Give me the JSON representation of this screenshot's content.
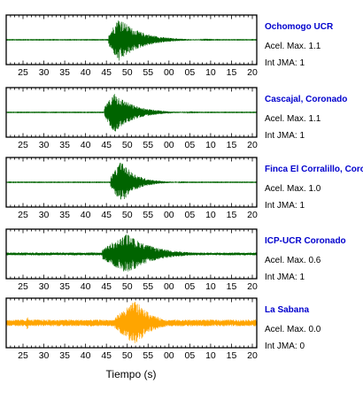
{
  "chart_data": {
    "type": "line",
    "xlabel": "Tiempo (s)",
    "tick_labels": [
      "25",
      "30",
      "35",
      "40",
      "45",
      "50",
      "55",
      "00",
      "05",
      "10",
      "15",
      "20"
    ],
    "xlim": [
      21,
      81
    ],
    "stations": [
      {
        "name": "Ochomogo UCR",
        "accel_label": "Acel. Max. 1.1",
        "jma_label": "Int JMA: 1",
        "accel_max": 1.1,
        "jma": 1,
        "color": "#006400",
        "name_color": "#0000cd",
        "onset_s": 45.5,
        "peak_s": 48,
        "peak_amplitude": 0.95,
        "noise_amplitude": 0.01,
        "decay_s": 5
      },
      {
        "name": "Cascajal, Coronado",
        "accel_label": "Acel. Max. 1.1",
        "jma_label": "Int JMA: 1",
        "accel_max": 1.1,
        "jma": 1,
        "color": "#006400",
        "name_color": "#0000cd",
        "onset_s": 44.5,
        "peak_s": 47,
        "peak_amplitude": 0.85,
        "noise_amplitude": 0.01,
        "decay_s": 4.5
      },
      {
        "name": "Finca El Corralillo, Coronado",
        "accel_label": "Acel. Max. 1.0",
        "jma_label": "Int JMA: 1",
        "accel_max": 1.0,
        "jma": 1,
        "color": "#006400",
        "name_color": "#0000cd",
        "onset_s": 46,
        "peak_s": 48.5,
        "peak_amplitude": 0.9,
        "noise_amplitude": 0.01,
        "decay_s": 3.5
      },
      {
        "name": "ICP-UCR Coronado",
        "accel_label": "Acel. Max. 0.6",
        "jma_label": "Int JMA: 1",
        "accel_max": 0.6,
        "jma": 1,
        "color": "#006400",
        "name_color": "#0000cd",
        "onset_s": 44,
        "peak_s": 50,
        "peak_amplitude": 0.85,
        "noise_amplitude": 0.06,
        "decay_s": 6
      },
      {
        "name": "La Sabana",
        "accel_label": "Acel. Max. 0.0",
        "jma_label": "Int JMA: 0",
        "accel_max": 0.0,
        "jma": 0,
        "color": "#ffa500",
        "name_color": "#0000cd",
        "onset_s": 47,
        "peak_s": 52,
        "peak_amplitude": 0.95,
        "noise_amplitude": 0.14,
        "decay_s": 4,
        "spike_s": 26,
        "spike_amplitude": 0.3
      }
    ]
  }
}
